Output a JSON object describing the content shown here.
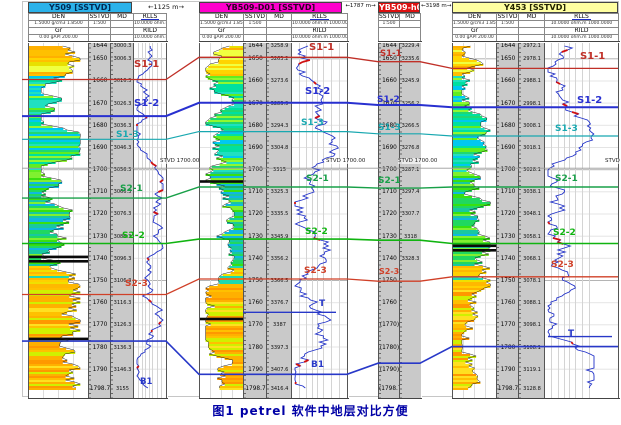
{
  "figure": {
    "caption": "图1  petrel 软件中地层对比方便"
  },
  "grid_label": "STVD 1700.00",
  "distances": [
    "←1125 m→",
    "←1787 m→",
    "←3198 m→"
  ],
  "wells": [
    {
      "title": "Y509 [SSTVD]",
      "header_color": "#2bb2ea",
      "title_text": "#002a55",
      "tracks": {
        "den": "DEN",
        "den_scale": "1.5000 g/cm3 1.8500",
        "gr": "Gr",
        "gr_scale": "0.00 gAPI 200.00",
        "sstvd": "SSTVD",
        "sstvd_scale": "1:500",
        "md": "MD",
        "rlls": "RLLS",
        "rlls_scale": "10.0000 ohm.m 1000.0000",
        "rild": "RILD",
        "rild_scale": "10.0000 ohm.m 1000.0000"
      },
      "sstvd_labels": [
        "1644",
        "1650",
        "1660",
        "1670",
        "1680",
        "1690",
        "1700",
        "1710",
        "1720",
        "1730",
        "1740",
        "1750",
        "1760",
        "1770",
        "1780",
        "1790",
        "1798.7"
      ],
      "md_labels": [
        "3000.3",
        "3006.3",
        "3016.3",
        "3026.3",
        "3036.3",
        "3046.3",
        "3056.3",
        "3066.3",
        "3076.3",
        "3086.3",
        "3096.3",
        "3106.3",
        "3116.3",
        "3126.3",
        "3136.3",
        "3146.3",
        "3155"
      ]
    },
    {
      "title": "YB509-D01 [SSTVD]",
      "header_color": "#ff00cc",
      "title_text": "#2a0022",
      "tracks": {
        "den": "DEN",
        "den_scale": "1.5000 g/cm3 1.8500",
        "gr": "Gr",
        "gr_scale": "0.00 gAPI 200.00",
        "sstvd": "SSTVD",
        "sstvd_scale": "1:500",
        "md": "MD",
        "rlls": "RLLS",
        "rlls_scale": "10.0000 ohm.m 1000.0000",
        "rild": "RILD",
        "rild_scale": "10.0000 ohm.m 1000.0000"
      },
      "sstvd_labels": [
        "1644",
        "1650",
        "1660",
        "1670",
        "1680",
        "1690",
        "1700",
        "1710",
        "1720",
        "1730",
        "1740",
        "1750",
        "1760",
        "1770",
        "1780",
        "1790",
        "1798.7"
      ],
      "md_labels": [
        "3258.9",
        "3263.2",
        "3273.6",
        "3283.9",
        "3294.3",
        "3304.8",
        "3315",
        "3325.3",
        "3335.5",
        "3345.9",
        "3356.2",
        "3366.5",
        "3376.7",
        "3387",
        "3397.3",
        "3407.6",
        "3416.4"
      ]
    },
    {
      "title": "YB509-h01 [SSTVD]",
      "header_color": "#dd1111",
      "title_text": "#ffffff",
      "tracks": {
        "sstvd": "SSTVD",
        "sstvd_scale": "1:500",
        "md": "MD"
      },
      "sstvd_labels": [
        "1644",
        "1650",
        "1660",
        "1670",
        "1680",
        "1690",
        "1700",
        "1710",
        "1720",
        "1730",
        "1740",
        "1750",
        "1760",
        "(1770)",
        "(1780)",
        "(1790)",
        "(1798.7)"
      ],
      "md_labels": [
        "3229.4",
        "3235.6",
        "3245.9",
        "3256.2",
        "3266.5",
        "3276.8",
        "3287.1",
        "3297.4",
        "3307.7",
        "3318",
        "3328.3",
        "",
        "",
        "",
        "",
        "",
        ""
      ]
    },
    {
      "title": "Y453 [SSTVD]",
      "header_color": "#ffffa0",
      "title_text": "#222200",
      "tracks": {
        "den": "DEN",
        "den_scale": "1.5000 g/cm3 1.8500",
        "gr": "Gr",
        "gr_scale": "0.00 gAPI 200.00",
        "sstvd": "SSTVD",
        "sstvd_scale": "1:500",
        "md": "MD",
        "rlls": "RLLS",
        "rlls_scale": "10.0000 ohm.m 1000.0000",
        "rild": "RILD",
        "rild_scale": "10.0000 ohm.m 1000.0000"
      },
      "sstvd_labels": [
        "1644",
        "1650",
        "1660",
        "1670",
        "1680",
        "1690",
        "1700",
        "1710",
        "1720",
        "1730",
        "1740",
        "1750",
        "1760",
        "1770",
        "1780",
        "1790",
        "1798.7"
      ],
      "md_labels": [
        "2972.1",
        "2978.1",
        "2988.1",
        "2998.1",
        "3008.1",
        "3018.1",
        "3028.1",
        "3038.1",
        "3048.1",
        "3058.1",
        "3068.1",
        "3078.1",
        "3088.1",
        "3098.1",
        "3108.1",
        "3119.1",
        "3128.8"
      ]
    }
  ],
  "tops": [
    {
      "name": "S1-1",
      "color": "#c03028",
      "picks_sstvd": [
        1660,
        1650,
        1652,
        1655
      ]
    },
    {
      "name": "S1-2",
      "color": "#2830d0",
      "picks_sstvd": [
        1676.5,
        1670.5,
        1671.5,
        1672.5
      ]
    },
    {
      "name": "S1-3",
      "color": "#18a8b0",
      "picks_sstvd": [
        1687,
        1683.5,
        1684.5,
        1685.5
      ]
    },
    {
      "name": "S2-1",
      "color": "#18a048",
      "picks_sstvd": [
        1713.5,
        1708.5,
        1709,
        1708.5
      ]
    },
    {
      "name": "S2-2",
      "color": "#10b410",
      "picks_sstvd": [
        1734,
        1732,
        1732.5,
        1734
      ]
    },
    {
      "name": "S2-3",
      "color": "#d04028",
      "picks_sstvd": [
        1757,
        1750,
        1751,
        1749
      ]
    },
    {
      "name": "B1",
      "color": "#2838c8",
      "picks_sstvd": [
        1778,
        1793,
        1788,
        1780.5
      ]
    },
    {
      "name": "T",
      "color": "#2838c8",
      "picks_sstvd": [
        null,
        1765,
        null,
        1776
      ]
    }
  ],
  "colors": {
    "resistivity_curve": "#2030c8",
    "resistivity_highlight": "#d01010",
    "column_bg": "#c9c9c9",
    "grid_line": "#e4e4e4",
    "grid_line_major": "#b4b4b4",
    "caption_text": "#0000a6",
    "lith_black": "#0a0a0a",
    "lith_zone_palettes": {
      "a": [
        "#ffd400",
        "#ffb000",
        "#f0ff40",
        "#ffc000",
        "#e8e000"
      ],
      "b": [
        "#20e0c0",
        "#00c8f0",
        "#60ee20",
        "#20d870",
        "#90f830",
        "#00e0a0"
      ],
      "c": [
        "#38e010",
        "#18c8a0",
        "#80f030",
        "#10b8e0",
        "#20d860"
      ],
      "d": [
        "#ffb800",
        "#f0e000",
        "#20d8b0",
        "#ffd000"
      ],
      "e": [
        "#ffc000",
        "#ffe020",
        "#ff9800",
        "#d0f000",
        "#ffb000"
      ]
    }
  }
}
